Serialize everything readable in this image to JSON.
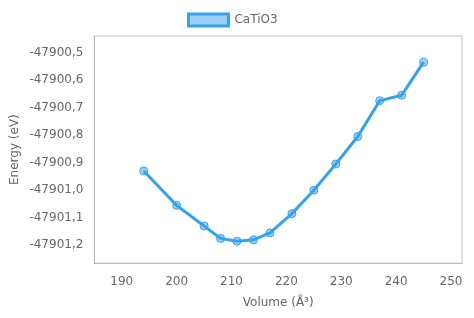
{
  "chart_data": {
    "type": "line",
    "x_label": "Volume (Å³)",
    "y_label": "Energy (eV)",
    "x": [
      194,
      200,
      205,
      208,
      211,
      214,
      217,
      221,
      225,
      229,
      233,
      237,
      241,
      245
    ],
    "series": [
      {
        "name": "CaTiO3",
        "marker": "o",
        "values": [
          -47900.93,
          -47901.055,
          -47901.13,
          -47901.175,
          -47901.185,
          -47901.18,
          -47901.155,
          -47901.085,
          -47901.0,
          -47900.905,
          -47900.805,
          -47900.675,
          -47900.655,
          -47900.535
        ]
      }
    ],
    "xlim": [
      185,
      252
    ],
    "ylim": [
      -47901.265,
      -47900.44
    ],
    "xticks": [
      190,
      200,
      210,
      220,
      230,
      240,
      250
    ],
    "yticks": [
      {
        "value": -47901.2,
        "label": "-47901,2"
      },
      {
        "value": -47901.1,
        "label": "-47901,1"
      },
      {
        "value": -47901.0,
        "label": "-47901,0"
      },
      {
        "value": -47900.9,
        "label": "-47900,9"
      },
      {
        "value": -47900.8,
        "label": "-47900,8"
      },
      {
        "value": -47900.7,
        "label": "-47900,7"
      },
      {
        "value": -47900.6,
        "label": "-47900,6"
      },
      {
        "value": -47900.5,
        "label": "-47900,5"
      }
    ],
    "grid": false
  }
}
